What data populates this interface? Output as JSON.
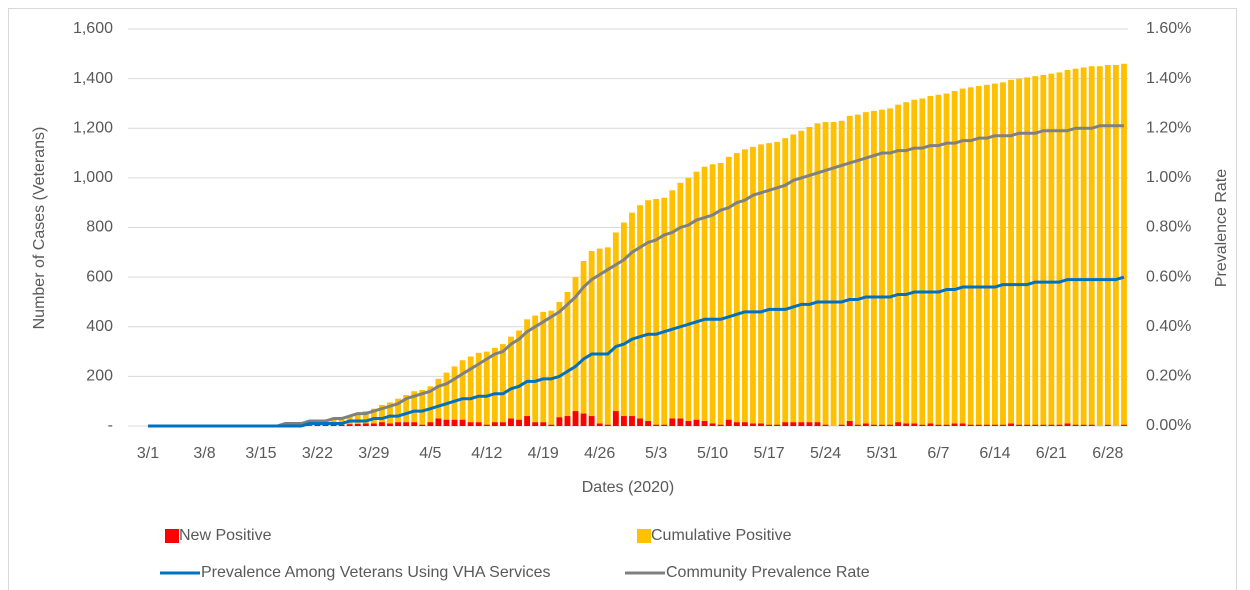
{
  "chart_data": {
    "type": "bar",
    "x_label": "Dates (2020)",
    "y_label": "Number of Cases (Veterans)",
    "y2_label": "Prevalence Rate",
    "categories": [
      "3/1",
      null,
      null,
      null,
      null,
      null,
      null,
      "3/8",
      null,
      null,
      null,
      null,
      null,
      null,
      "3/15",
      null,
      null,
      null,
      null,
      null,
      null,
      "3/22",
      null,
      null,
      null,
      null,
      null,
      null,
      "3/29",
      null,
      null,
      null,
      null,
      null,
      null,
      "4/5",
      null,
      null,
      null,
      null,
      null,
      null,
      "4/12",
      null,
      null,
      null,
      null,
      null,
      null,
      "4/19",
      null,
      null,
      null,
      null,
      null,
      null,
      "4/26",
      null,
      null,
      null,
      null,
      null,
      null,
      "5/3",
      null,
      null,
      null,
      null,
      null,
      null,
      "5/10",
      null,
      null,
      null,
      null,
      null,
      null,
      "5/17",
      null,
      null,
      null,
      null,
      null,
      null,
      "5/24",
      null,
      null,
      null,
      null,
      null,
      null,
      "5/31",
      null,
      null,
      null,
      null,
      null,
      null,
      "6/7",
      null,
      null,
      null,
      null,
      null,
      null,
      "6/14",
      null,
      null,
      null,
      null,
      null,
      null,
      "6/21",
      null,
      null,
      null,
      null,
      null,
      null,
      "6/28",
      null,
      null
    ],
    "series": [
      {
        "name": "New Positive",
        "type": "bar",
        "color": "#ff0000",
        "values": [
          0,
          0,
          0,
          0,
          0,
          0,
          0,
          0,
          0,
          0,
          0,
          0,
          0,
          0,
          0,
          1,
          1,
          3,
          3,
          4,
          3,
          5,
          5,
          5,
          5,
          7,
          8,
          10,
          10,
          15,
          10,
          15,
          15,
          15,
          5,
          15,
          30,
          25,
          25,
          25,
          15,
          15,
          5,
          15,
          15,
          30,
          25,
          40,
          15,
          15,
          5,
          35,
          40,
          60,
          50,
          40,
          10,
          5,
          60,
          40,
          40,
          30,
          20,
          5,
          5,
          30,
          30,
          20,
          25,
          20,
          10,
          5,
          25,
          15,
          15,
          10,
          10,
          5,
          5,
          15,
          15,
          15,
          15,
          15,
          5,
          0,
          5,
          20,
          5,
          10,
          5,
          5,
          5,
          15,
          10,
          10,
          5,
          10,
          5,
          5,
          10,
          10,
          5,
          5,
          5,
          5,
          5,
          10,
          5,
          5,
          5,
          5,
          5,
          5,
          10,
          5,
          5,
          5,
          0,
          5,
          0,
          5
        ]
      },
      {
        "name": "Cumulative Positive",
        "type": "bar",
        "color": "#ffc000",
        "values": [
          0,
          0,
          0,
          0,
          0,
          0,
          0,
          0,
          0,
          0,
          0,
          0,
          0,
          0,
          0,
          1,
          2,
          5,
          8,
          12,
          15,
          20,
          25,
          30,
          35,
          42,
          50,
          60,
          70,
          85,
          95,
          110,
          125,
          140,
          145,
          160,
          190,
          215,
          240,
          265,
          280,
          295,
          300,
          315,
          330,
          360,
          385,
          430,
          445,
          460,
          465,
          500,
          540,
          600,
          665,
          705,
          715,
          720,
          780,
          820,
          860,
          890,
          910,
          915,
          920,
          950,
          980,
          1000,
          1025,
          1045,
          1055,
          1060,
          1085,
          1100,
          1115,
          1125,
          1135,
          1140,
          1145,
          1160,
          1175,
          1190,
          1205,
          1220,
          1225,
          1225,
          1230,
          1250,
          1255,
          1265,
          1270,
          1275,
          1280,
          1295,
          1305,
          1315,
          1320,
          1330,
          1335,
          1340,
          1350,
          1360,
          1365,
          1370,
          1375,
          1380,
          1385,
          1395,
          1400,
          1405,
          1410,
          1415,
          1420,
          1425,
          1435,
          1440,
          1445,
          1450,
          1450,
          1455,
          1455,
          1460
        ]
      },
      {
        "name": "Prevalence Among Veterans Using VHA Services",
        "type": "line",
        "axis": "y2",
        "color": "#0070c0",
        "values": [
          0,
          0,
          0,
          0,
          0,
          0,
          0,
          0,
          0,
          0,
          0,
          0,
          0,
          0,
          0,
          0,
          0,
          0,
          0,
          0,
          0.01,
          0.01,
          0.01,
          0.01,
          0.01,
          0.02,
          0.02,
          0.02,
          0.03,
          0.03,
          0.04,
          0.04,
          0.05,
          0.06,
          0.06,
          0.07,
          0.08,
          0.09,
          0.1,
          0.11,
          0.11,
          0.12,
          0.12,
          0.13,
          0.13,
          0.15,
          0.16,
          0.18,
          0.18,
          0.19,
          0.19,
          0.2,
          0.22,
          0.24,
          0.27,
          0.29,
          0.29,
          0.29,
          0.32,
          0.33,
          0.35,
          0.36,
          0.37,
          0.37,
          0.38,
          0.39,
          0.4,
          0.41,
          0.42,
          0.43,
          0.43,
          0.43,
          0.44,
          0.45,
          0.46,
          0.46,
          0.46,
          0.47,
          0.47,
          0.47,
          0.48,
          0.49,
          0.49,
          0.5,
          0.5,
          0.5,
          0.5,
          0.51,
          0.51,
          0.52,
          0.52,
          0.52,
          0.52,
          0.53,
          0.53,
          0.54,
          0.54,
          0.54,
          0.54,
          0.55,
          0.55,
          0.56,
          0.56,
          0.56,
          0.56,
          0.56,
          0.57,
          0.57,
          0.57,
          0.57,
          0.58,
          0.58,
          0.58,
          0.58,
          0.59,
          0.59,
          0.59,
          0.59,
          0.59,
          0.59,
          0.59,
          0.6
        ]
      },
      {
        "name": "Community Prevalence Rate",
        "type": "line",
        "axis": "y2",
        "color": "#808080",
        "values": [
          0,
          0,
          0,
          0,
          0,
          0,
          0,
          0,
          0,
          0,
          0,
          0,
          0,
          0,
          0,
          0,
          0,
          0.01,
          0.01,
          0.01,
          0.02,
          0.02,
          0.02,
          0.03,
          0.03,
          0.04,
          0.05,
          0.05,
          0.06,
          0.07,
          0.08,
          0.09,
          0.11,
          0.12,
          0.13,
          0.14,
          0.16,
          0.17,
          0.19,
          0.21,
          0.23,
          0.25,
          0.27,
          0.29,
          0.3,
          0.33,
          0.35,
          0.38,
          0.4,
          0.42,
          0.44,
          0.46,
          0.49,
          0.52,
          0.56,
          0.59,
          0.61,
          0.63,
          0.65,
          0.67,
          0.7,
          0.72,
          0.74,
          0.75,
          0.77,
          0.78,
          0.8,
          0.81,
          0.83,
          0.84,
          0.85,
          0.87,
          0.88,
          0.9,
          0.91,
          0.93,
          0.94,
          0.95,
          0.96,
          0.97,
          0.99,
          1.0,
          1.01,
          1.02,
          1.03,
          1.04,
          1.05,
          1.06,
          1.07,
          1.08,
          1.09,
          1.1,
          1.1,
          1.11,
          1.11,
          1.12,
          1.12,
          1.13,
          1.13,
          1.14,
          1.14,
          1.15,
          1.15,
          1.16,
          1.16,
          1.17,
          1.17,
          1.17,
          1.18,
          1.18,
          1.18,
          1.19,
          1.19,
          1.19,
          1.19,
          1.2,
          1.2,
          1.2,
          1.21,
          1.21,
          1.21,
          1.21
        ]
      }
    ],
    "ylim": [
      0,
      1600
    ],
    "yticks": [
      {
        "value": 0,
        "label": "-"
      },
      200,
      400,
      600,
      800,
      {
        "value": 1000,
        "label": "1,000"
      },
      {
        "value": 1200,
        "label": "1,200"
      },
      {
        "value": 1400,
        "label": "1,400"
      },
      {
        "value": 1600,
        "label": "1,600"
      }
    ],
    "y2lim": [
      0,
      1.6
    ],
    "y2ticks": [
      {
        "value": 0,
        "label": "0.00%"
      },
      {
        "value": 0.2,
        "label": "0.20%"
      },
      {
        "value": 0.4,
        "label": "0.40%"
      },
      {
        "value": 0.6,
        "label": "0.60%"
      },
      {
        "value": 0.8,
        "label": "0.80%"
      },
      {
        "value": 1.0,
        "label": "1.00%"
      },
      {
        "value": 1.2,
        "label": "1.20%"
      },
      {
        "value": 1.4,
        "label": "1.40%"
      },
      {
        "value": 1.6,
        "label": "1.60%"
      }
    ],
    "grid": true,
    "legend": "bottom"
  }
}
